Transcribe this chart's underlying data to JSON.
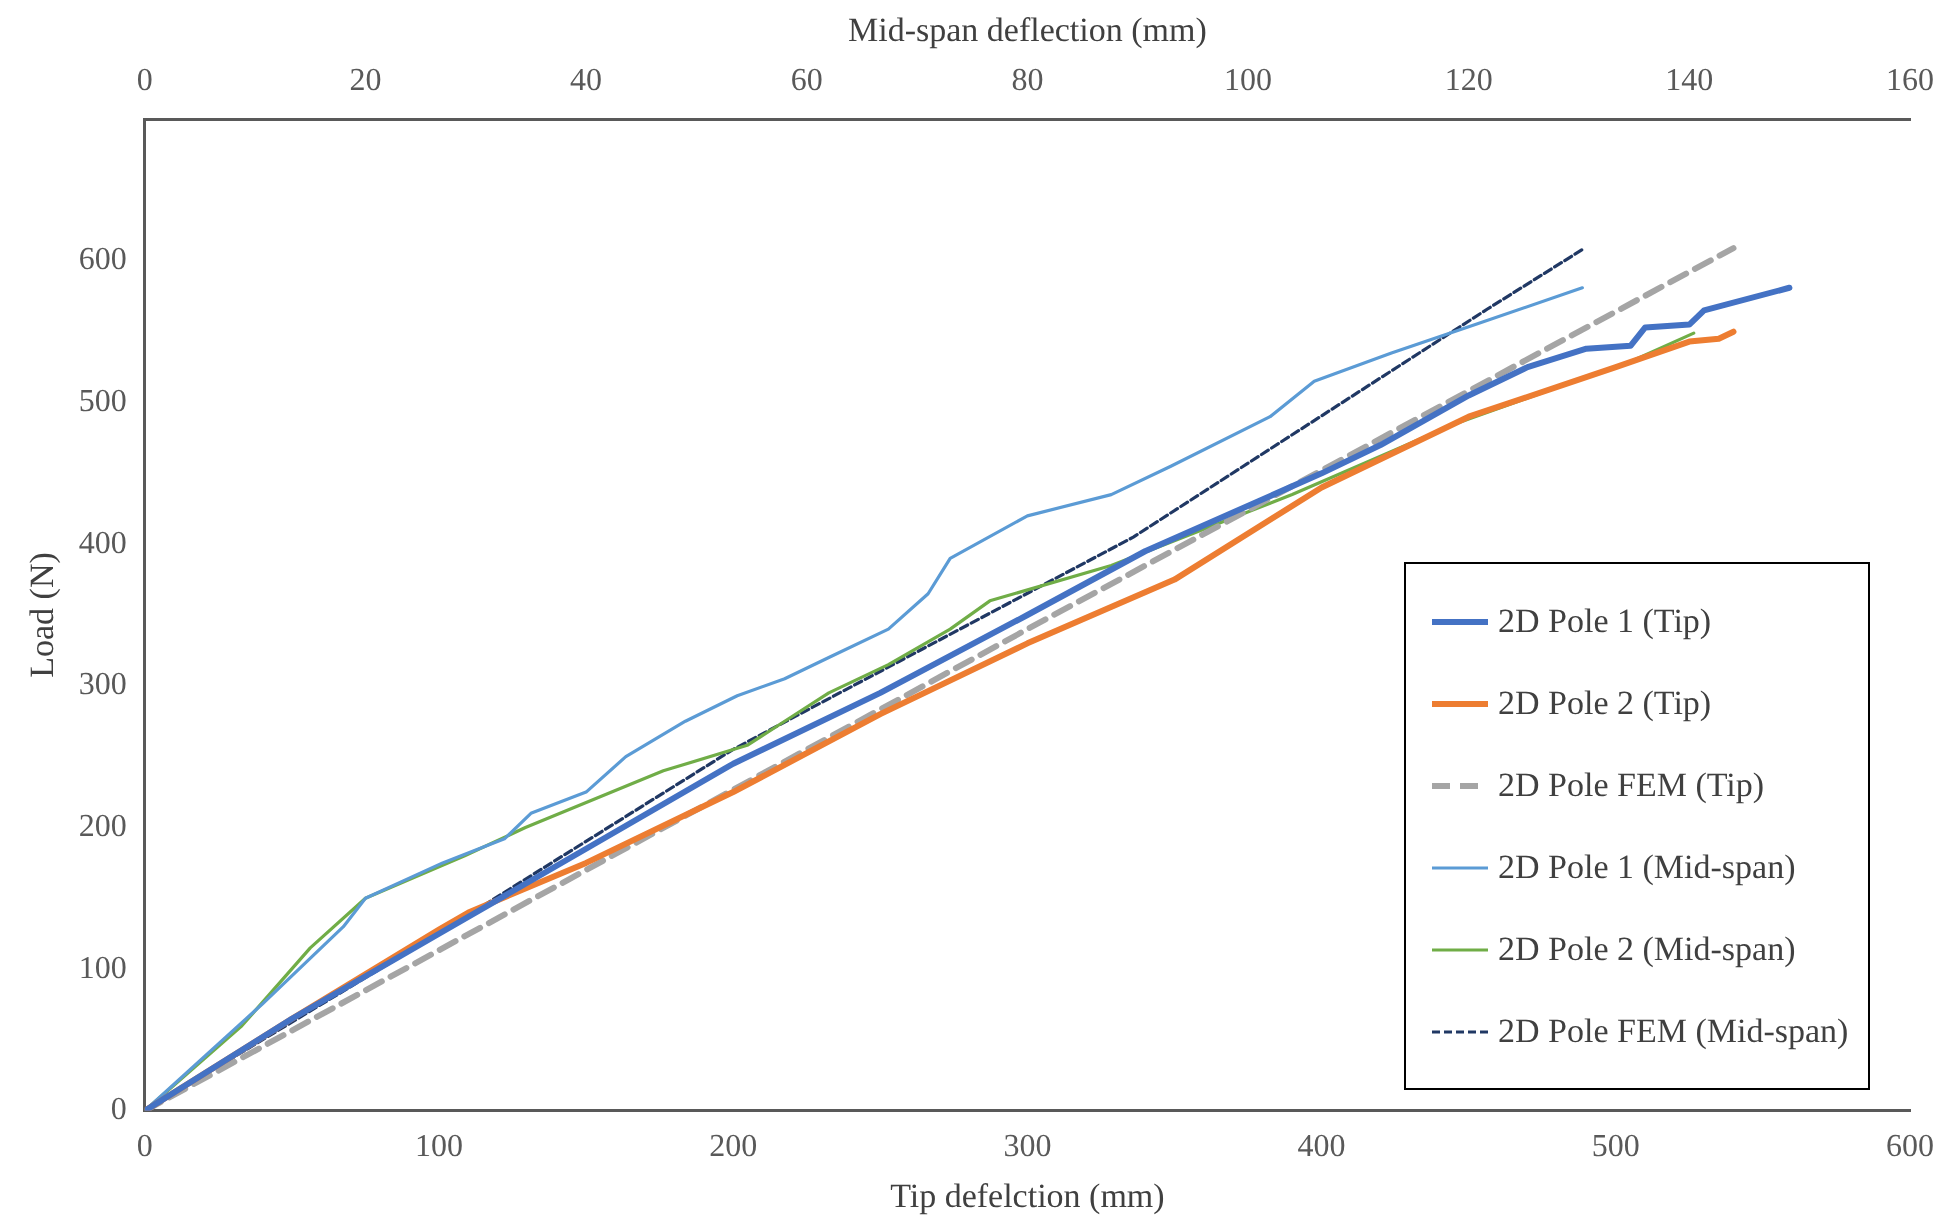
{
  "chart_data": {
    "type": "line",
    "xlabel": "Tip defelction (mm)",
    "x2label": "Mid-span deflection (mm)",
    "ylabel": "Load (N)",
    "xlim": [
      0,
      600
    ],
    "xticks": [
      0,
      100,
      200,
      300,
      400,
      500,
      600
    ],
    "x2lim": [
      0,
      160
    ],
    "x2ticks": [
      0,
      20,
      40,
      60,
      80,
      100,
      120,
      140,
      160
    ],
    "ylim": [
      0,
      700
    ],
    "yticks": [
      0,
      100,
      200,
      300,
      400,
      500,
      600
    ],
    "grid": false,
    "legend": "bottom right",
    "marker": "none",
    "series": [
      {
        "name": "2D Pole 1 (Tip)",
        "color": "#4472c4",
        "line_style": "solid",
        "x": [
          0,
          50,
          100,
          150,
          200,
          250,
          300,
          340,
          400,
          420,
          450,
          470,
          490,
          505,
          510,
          525,
          530,
          559
        ],
        "values": [
          0,
          65,
          125,
          185,
          245,
          295,
          350,
          395,
          450,
          470,
          505,
          525,
          538,
          540,
          553,
          555,
          565,
          581
        ]
      },
      {
        "name": "2D Pole 2 (Tip)",
        "color": "#ed7d31",
        "line_style": "solid",
        "x": [
          0,
          50,
          100,
          110,
          150,
          200,
          250,
          300,
          350,
          400,
          450,
          500,
          525,
          535,
          540
        ],
        "values": [
          0,
          65,
          128,
          140,
          175,
          225,
          280,
          330,
          375,
          440,
          490,
          525,
          543,
          545,
          550
        ]
      },
      {
        "name": "2D Pole FEM (Tip)",
        "color": "#a5a5a5",
        "line_style": "dashed",
        "x": [
          0,
          300,
          540
        ],
        "values": [
          0,
          340,
          609
        ]
      },
      {
        "name": "2D Pole 1 (Mid-span)",
        "color": "#5b9bd5",
        "line_style": "solid",
        "axis": "x2",
        "x": [
          0,
          10.6,
          18,
          20,
          27,
          32.6,
          35,
          40,
          43.6,
          49,
          53.7,
          58,
          62,
          67.4,
          71,
          73,
          80,
          87.6,
          93,
          102,
          106,
          113,
          120.6,
          130.3
        ],
        "values": [
          0,
          75,
          130,
          150,
          175,
          192,
          210,
          225,
          250,
          275,
          293,
          305,
          320,
          340,
          365,
          390,
          420,
          435,
          455,
          490,
          515,
          535,
          555,
          581
        ]
      },
      {
        "name": "2D Pole 2 (Mid-span)",
        "color": "#70ad47",
        "line_style": "solid",
        "axis": "x2",
        "x": [
          0,
          8.8,
          15,
          20,
          29,
          34.5,
          47,
          54.6,
          58,
          62,
          67.4,
          73,
          76.6,
          87.6,
          104,
          118.8,
          135,
          140.4
        ],
        "values": [
          0,
          60,
          115,
          150,
          180,
          200,
          240,
          258,
          275,
          295,
          315,
          340,
          360,
          385,
          435,
          485,
          530,
          549
        ]
      },
      {
        "name": "2D Pole FEM (Mid-span)",
        "color": "#203864",
        "line_style": "dotted",
        "axis": "x2",
        "x": [
          0,
          26.6,
          53.3,
          89.6,
          121.7,
          130.3
        ],
        "values": [
          0,
          125,
          255,
          405,
          566,
          608
        ]
      }
    ]
  }
}
